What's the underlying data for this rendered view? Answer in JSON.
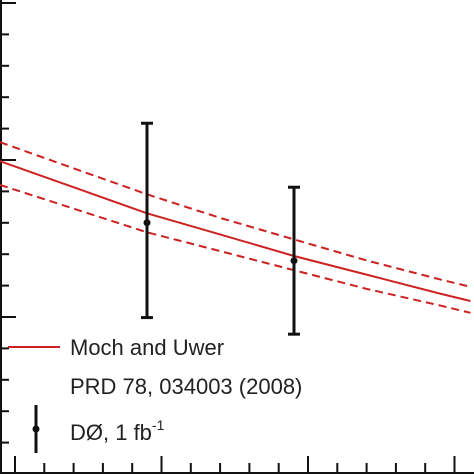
{
  "chart_data": {
    "type": "line",
    "xlim": [
      1,
      4.2
    ],
    "ylim": [
      0,
      1
    ],
    "grid": false,
    "legend_placement": "bottom-left",
    "colors": {
      "theory": "#cc2222",
      "data": "#111111",
      "axis": "#111111"
    },
    "series": [
      {
        "name": "Moch and Uwer",
        "style": "solid",
        "x": [
          1.0,
          1.5,
          2.0,
          2.5,
          3.0,
          3.5,
          4.0,
          4.2
        ],
        "y": [
          0.66,
          0.605,
          0.55,
          0.505,
          0.46,
          0.42,
          0.38,
          0.365
        ]
      },
      {
        "name": "",
        "style": "dashed",
        "x": [
          1.0,
          1.5,
          2.0,
          2.5,
          3.0,
          3.5,
          4.0,
          4.2
        ],
        "y": [
          0.7,
          0.645,
          0.59,
          0.54,
          0.495,
          0.45,
          0.41,
          0.395
        ]
      },
      {
        "name": "",
        "style": "dashed",
        "x": [
          1.0,
          1.5,
          2.0,
          2.5,
          3.0,
          3.5,
          4.0,
          4.2
        ],
        "y": [
          0.61,
          0.56,
          0.51,
          0.47,
          0.43,
          0.39,
          0.355,
          0.34
        ]
      }
    ],
    "data_points": {
      "name": "DØ, 1 fb",
      "name_superscript": "-1",
      "x": [
        2.0,
        3.0
      ],
      "y": [
        0.53,
        0.45
      ],
      "yerr_low": [
        0.2,
        0.155
      ],
      "yerr_high": [
        0.21,
        0.155
      ]
    },
    "legend": {
      "line_label": "Moch and Uwer",
      "line_reference": "PRD 78, 034003 (2008)",
      "data_label": "DØ, 1 fb",
      "data_superscript": "-1"
    }
  }
}
